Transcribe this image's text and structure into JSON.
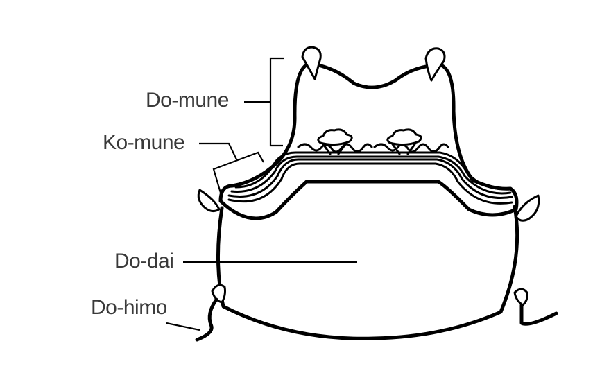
{
  "labels": {
    "do_mune": "Do-mune",
    "ko_mune": "Ko-mune",
    "do_dai": "Do-dai",
    "do_himo": "Do-himo"
  },
  "colors": {
    "background": "#ffffff",
    "outline": "#000000",
    "label_text": "#3a3a3a"
  }
}
